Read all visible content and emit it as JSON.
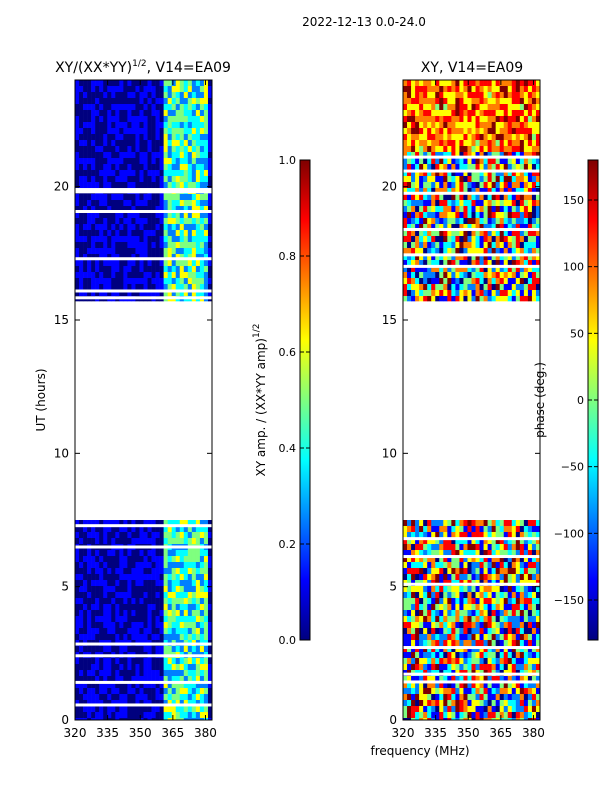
{
  "figure_title": "2022-12-13 0.0-24.0",
  "xlabel_common": "frequency (MHz)",
  "ylabel_common": "UT (hours)",
  "chart_data": [
    {
      "type": "heatmap",
      "title_main": "XY/(XX*YY)",
      "title_exp": "1/2",
      "title_suffix": ", V14=EA09",
      "x_ticks": [
        320,
        335,
        350,
        365,
        380
      ],
      "xlim": [
        320,
        383
      ],
      "y_ticks": [
        0,
        5,
        10,
        15,
        20
      ],
      "ylim": [
        0,
        24
      ],
      "data_segments_ut": [
        [
          0,
          7.5
        ],
        [
          15.7,
          24
        ]
      ],
      "gap_ut": [
        [
          7.5,
          15.7
        ]
      ],
      "colorbar": {
        "label_main": "XY amp. / (XX*YY amp)",
        "label_exp": "1/2",
        "ticks": [
          "0.0",
          "0.2",
          "0.4",
          "0.6",
          "0.8",
          "1.0"
        ],
        "vmin": 0.0,
        "vmax": 1.0,
        "colormap": "jet"
      }
    },
    {
      "type": "heatmap",
      "title": "XY, V14=EA09",
      "x_ticks": [
        320,
        335,
        350,
        365,
        380
      ],
      "xlim": [
        320,
        383
      ],
      "y_ticks": [
        0,
        5,
        10,
        15,
        20
      ],
      "ylim": [
        0,
        24
      ],
      "data_segments_ut": [
        [
          0,
          7.5
        ],
        [
          15.7,
          24
        ]
      ],
      "gap_ut": [
        [
          7.5,
          15.7
        ]
      ],
      "colorbar": {
        "label": "phase (deg.)",
        "ticks": [
          "150",
          "100",
          "50",
          "0",
          "−50",
          "−100",
          "−150"
        ],
        "vmin": -180,
        "vmax": 180,
        "colormap": "jet"
      }
    }
  ],
  "colors": {
    "jet": [
      "#00007f",
      "#0000ff",
      "#007fff",
      "#00ffff",
      "#7fff7f",
      "#ffff00",
      "#ff7f00",
      "#ff0000",
      "#7f0000"
    ]
  }
}
